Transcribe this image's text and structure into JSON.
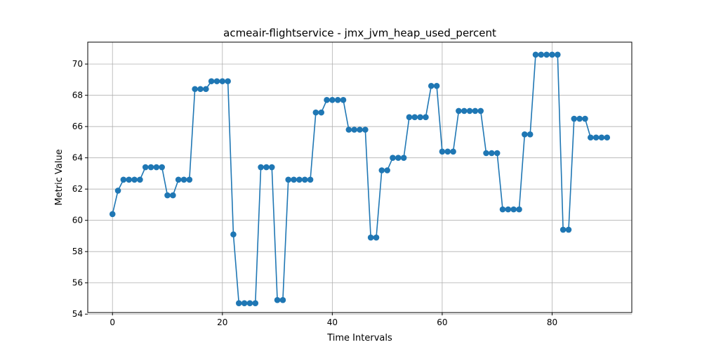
{
  "chart_data": {
    "type": "line",
    "title": "acmeair-flightservice - jmx_jvm_heap_used_percent",
    "xlabel": "Time Intervals",
    "ylabel": "Metric Value",
    "xlim": [
      -4.5,
      94.5
    ],
    "ylim": [
      54.1,
      71.4
    ],
    "xticks": [
      0,
      20,
      40,
      60,
      80
    ],
    "yticks": [
      54,
      56,
      58,
      60,
      62,
      64,
      66,
      68,
      70
    ],
    "grid": true,
    "series": [
      {
        "color": "#1f77b4",
        "marker": "circle",
        "values": [
          60.4,
          61.9,
          62.6,
          62.6,
          62.6,
          62.6,
          63.4,
          63.4,
          63.4,
          63.4,
          61.6,
          61.6,
          62.6,
          62.6,
          62.6,
          68.4,
          68.4,
          68.4,
          68.9,
          68.9,
          68.9,
          68.9,
          59.1,
          54.7,
          54.7,
          54.7,
          54.7,
          63.4,
          63.4,
          63.4,
          54.9,
          54.9,
          62.6,
          62.6,
          62.6,
          62.6,
          62.6,
          66.9,
          66.9,
          67.7,
          67.7,
          67.7,
          67.7,
          65.8,
          65.8,
          65.8,
          65.8,
          58.9,
          58.9,
          63.2,
          63.2,
          64.0,
          64.0,
          64.0,
          66.6,
          66.6,
          66.6,
          66.6,
          68.6,
          68.6,
          64.4,
          64.4,
          64.4,
          67.0,
          67.0,
          67.0,
          67.0,
          67.0,
          64.3,
          64.3,
          64.3,
          60.7,
          60.7,
          60.7,
          60.7,
          65.5,
          65.5,
          70.6,
          70.6,
          70.6,
          70.6,
          70.6,
          59.4,
          59.4,
          66.5,
          66.5,
          66.5,
          65.3,
          65.3,
          65.3,
          65.3
        ]
      }
    ]
  }
}
